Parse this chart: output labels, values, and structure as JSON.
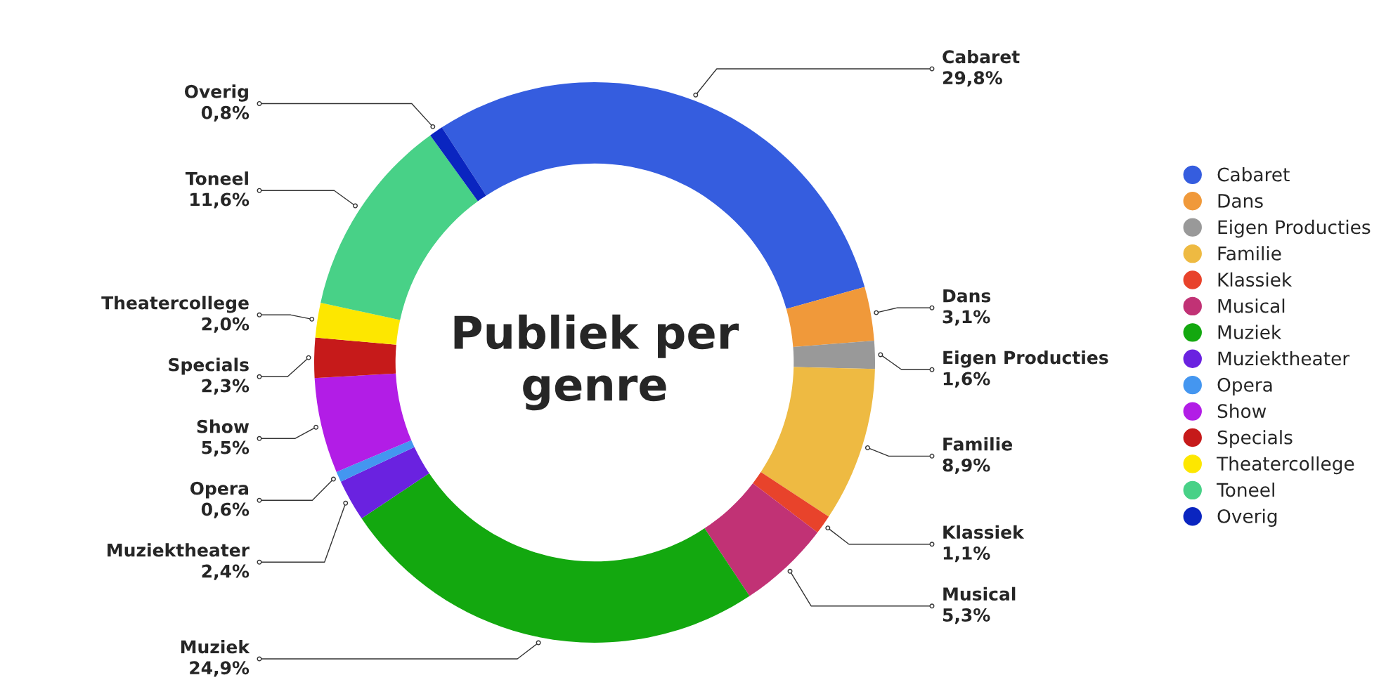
{
  "chart_data": {
    "type": "donut",
    "title": "Publiek per\ngenre",
    "categories": [
      "Cabaret",
      "Dans",
      "Eigen Producties",
      "Familie",
      "Klassiek",
      "Musical",
      "Muziek",
      "Muziektheater",
      "Opera",
      "Show",
      "Specials",
      "Theatercollege",
      "Toneel",
      "Overig"
    ],
    "values": [
      29.8,
      3.1,
      1.6,
      8.9,
      1.1,
      5.3,
      24.9,
      2.4,
      0.6,
      5.5,
      2.3,
      2.0,
      11.6,
      0.8
    ],
    "value_labels": [
      "29,8%",
      "3,1%",
      "1,6%",
      "8,9%",
      "1,1%",
      "5,3%",
      "24,9%",
      "2,4%",
      "0,6%",
      "5,5%",
      "2,3%",
      "2,0%",
      "11,6%",
      "0,8%"
    ],
    "colors": [
      "#355ddf",
      "#f0993a",
      "#999999",
      "#eeba42",
      "#e8432b",
      "#c13275",
      "#13a80f",
      "#6a22e0",
      "#4496f0",
      "#b21de6",
      "#c61a1a",
      "#fde700",
      "#48d187",
      "#0a25c0"
    ],
    "legend": "right"
  }
}
